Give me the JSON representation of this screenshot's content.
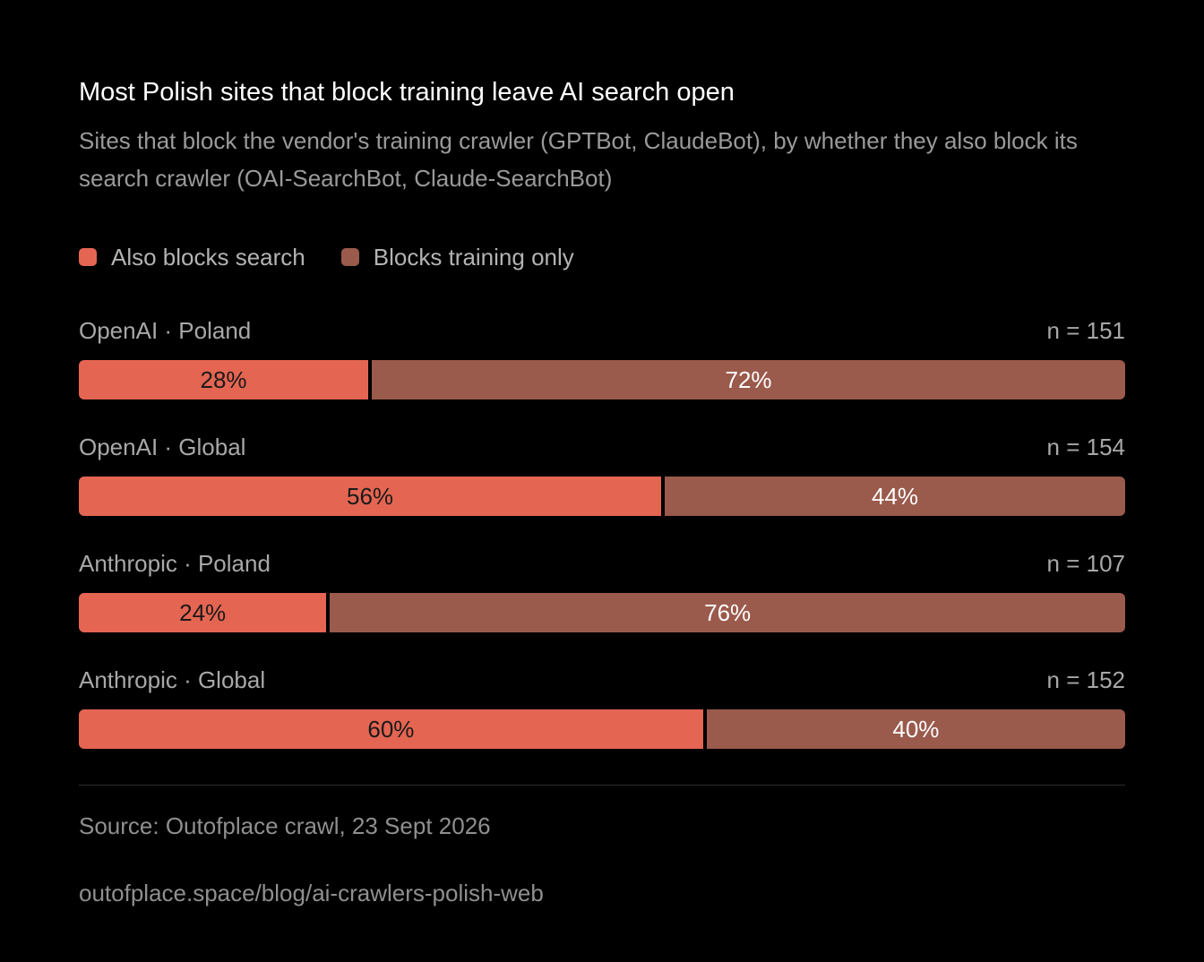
{
  "colors": {
    "background": "#000000",
    "also_blocks_search": "#e46552",
    "blocks_training_only": "#9a5a4c"
  },
  "header": {
    "title": "Most Polish sites that block training leave AI search open",
    "subtitle": "Sites that block the vendor's training crawler (GPTBot, ClaudeBot), by whether they also block its search crawler (OAI-SearchBot, Claude-SearchBot)"
  },
  "legend": [
    {
      "label": "Also blocks search",
      "color": "#e46552"
    },
    {
      "label": "Blocks training only",
      "color": "#9a5a4c"
    }
  ],
  "chart_data": {
    "type": "bar",
    "orientation": "horizontal",
    "stacked": true,
    "normalized_percent": true,
    "title": "Most Polish sites that block training leave AI search open",
    "subtitle": "Sites that block the vendor's training crawler (GPTBot, ClaudeBot), by whether they also block its search crawler (OAI-SearchBot, Claude-SearchBot)",
    "categories": [
      "OpenAI · Poland",
      "OpenAI · Global",
      "Anthropic · Poland",
      "Anthropic · Global"
    ],
    "n_labels": [
      "n = 151",
      "n = 154",
      "n = 107",
      "n = 152"
    ],
    "series": [
      {
        "name": "Also blocks search",
        "values": [
          28,
          56,
          24,
          60
        ],
        "labels": [
          "28%",
          "56%",
          "24%",
          "60%"
        ]
      },
      {
        "name": "Blocks training only",
        "values": [
          72,
          44,
          76,
          40
        ],
        "labels": [
          "72%",
          "44%",
          "76%",
          "40%"
        ]
      }
    ],
    "xlim": [
      0,
      100
    ],
    "grid": false,
    "legend_position": "top-left"
  },
  "footer": {
    "source": "Source: Outofplace crawl, 23 Sept 2026",
    "url": "outofplace.space/blog/ai-crawlers-polish-web"
  }
}
